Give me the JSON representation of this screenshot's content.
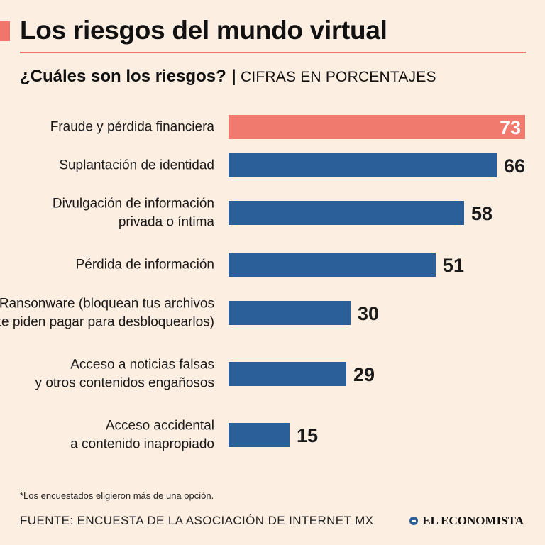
{
  "header": {
    "title": "Los riesgos del mundo virtual",
    "subtitle": "¿Cuáles son los riesgos?",
    "separator": "|",
    "units": "CIFRAS EN PORCENTAJES"
  },
  "footer": {
    "note": "*Los encuestados eligieron más de una opción.",
    "source": "FUENTE: ENCUESTA DE LA ASOCIACIÓN DE INTERNET MX",
    "brand": "EL ECONOMISTA"
  },
  "colors": {
    "background": "#fdeee2",
    "accent": "#f0766b",
    "highlight_bar": "#f07a6e",
    "bar": "#2b5f9a"
  },
  "chart_data": {
    "type": "bar",
    "orientation": "horizontal",
    "title": "¿Cuáles son los riesgos?",
    "xlabel": "",
    "ylabel": "",
    "units": "CIFRAS EN PORCENTAJES",
    "xlim": [
      0,
      73
    ],
    "categories": [
      [
        "Fraude y pérdida financiera"
      ],
      [
        "Suplantación de identidad"
      ],
      [
        "Divulgación de información",
        "privada o íntima"
      ],
      [
        "Pérdida de información"
      ],
      [
        "Ransonware (bloquean tus archivos",
        "y te piden pagar para desbloquearlos)"
      ],
      [
        "Acceso a noticias falsas",
        "y otros contenidos engañosos"
      ],
      [
        "Acceso accidental",
        "a contenido inapropiado"
      ]
    ],
    "values": [
      73,
      66,
      58,
      51,
      30,
      29,
      15
    ],
    "highlighted": [
      true,
      false,
      false,
      false,
      false,
      false,
      false
    ]
  }
}
